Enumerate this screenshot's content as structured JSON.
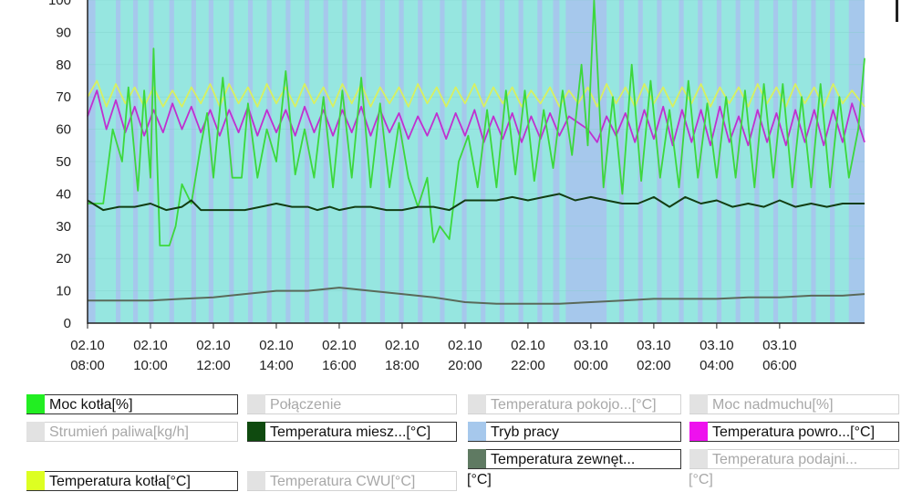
{
  "chart_data": {
    "type": "line",
    "ylim": [
      0,
      100
    ],
    "yticks": [
      0,
      10,
      20,
      30,
      40,
      50,
      60,
      70,
      80,
      90,
      100
    ],
    "xlim_hours": [
      0,
      24.7
    ],
    "x_ticks": [
      {
        "date": "02.10",
        "time": "08:00",
        "h": 0
      },
      {
        "date": "02.10",
        "time": "10:00",
        "h": 2
      },
      {
        "date": "02.10",
        "time": "12:00",
        "h": 4
      },
      {
        "date": "02.10",
        "time": "14:00",
        "h": 6
      },
      {
        "date": "02.10",
        "time": "16:00",
        "h": 8
      },
      {
        "date": "02.10",
        "time": "18:00",
        "h": 10
      },
      {
        "date": "02.10",
        "time": "20:00",
        "h": 12
      },
      {
        "date": "02.10",
        "time": "22:00",
        "h": 14
      },
      {
        "date": "03.10",
        "time": "00:00",
        "h": 16
      },
      {
        "date": "03.10",
        "time": "02:00",
        "h": 18
      },
      {
        "date": "03.10",
        "time": "04:00",
        "h": 20
      },
      {
        "date": "03.10",
        "time": "06:00",
        "h": 22
      }
    ],
    "background": {
      "name": "Tryb pracy",
      "base_color": "#96e6e0",
      "stripe_color": "#a6c8ec",
      "stripe_hours": [
        [
          0.0,
          0.25
        ],
        [
          0.9,
          1.05
        ],
        [
          1.45,
          1.6
        ],
        [
          1.95,
          2.1
        ],
        [
          2.6,
          2.75
        ],
        [
          3.3,
          3.45
        ],
        [
          3.85,
          4.0
        ],
        [
          4.5,
          4.65
        ],
        [
          5.1,
          5.25
        ],
        [
          5.7,
          5.85
        ],
        [
          6.3,
          6.45
        ],
        [
          6.9,
          7.05
        ],
        [
          7.5,
          7.65
        ],
        [
          8.1,
          8.25
        ],
        [
          8.7,
          8.85
        ],
        [
          9.3,
          9.45
        ],
        [
          9.9,
          10.05
        ],
        [
          10.5,
          10.65
        ],
        [
          11.2,
          11.35
        ],
        [
          11.9,
          12.05
        ],
        [
          12.5,
          12.65
        ],
        [
          13.1,
          13.25
        ],
        [
          13.7,
          13.85
        ],
        [
          14.3,
          14.45
        ],
        [
          14.8,
          15.0
        ],
        [
          15.2,
          16.5
        ],
        [
          16.9,
          17.05
        ],
        [
          17.5,
          17.65
        ],
        [
          18.1,
          18.25
        ],
        [
          18.8,
          18.95
        ],
        [
          19.4,
          19.55
        ],
        [
          20.0,
          20.15
        ],
        [
          20.6,
          20.75
        ],
        [
          21.2,
          21.35
        ],
        [
          21.8,
          21.95
        ],
        [
          22.4,
          22.55
        ],
        [
          23.0,
          23.15
        ],
        [
          23.6,
          23.75
        ],
        [
          24.2,
          24.7
        ]
      ]
    },
    "series": [
      {
        "name": "Temperatura kotła[°C]",
        "color": "#d8f060",
        "x": [
          0,
          0.3,
          0.6,
          0.9,
          1.2,
          1.5,
          1.8,
          2.1,
          2.4,
          2.7,
          3.0,
          3.3,
          3.6,
          3.9,
          4.2,
          4.5,
          4.8,
          5.1,
          5.4,
          5.7,
          6.0,
          6.3,
          6.6,
          6.9,
          7.2,
          7.5,
          7.8,
          8.1,
          8.4,
          8.7,
          9.0,
          9.3,
          9.6,
          9.9,
          10.2,
          10.5,
          10.8,
          11.1,
          11.4,
          11.7,
          12.0,
          12.3,
          12.6,
          12.9,
          13.2,
          13.5,
          13.8,
          14.1,
          14.4,
          14.7,
          15.0,
          15.3,
          15.6,
          15.9,
          16.2,
          16.5,
          16.8,
          17.1,
          17.4,
          17.7,
          18.0,
          18.3,
          18.6,
          18.9,
          19.2,
          19.5,
          19.8,
          20.1,
          20.4,
          20.7,
          21.0,
          21.3,
          21.6,
          21.9,
          22.2,
          22.5,
          22.8,
          23.1,
          23.4,
          23.7,
          24.0,
          24.3,
          24.7
        ],
        "y": [
          70,
          75,
          67,
          74,
          68,
          73,
          67,
          73,
          67,
          72,
          67,
          73,
          68,
          74,
          67,
          74,
          68,
          73,
          67,
          74,
          68,
          73,
          67,
          74,
          68,
          73,
          67,
          74,
          68,
          74,
          67,
          73,
          68,
          73,
          67,
          74,
          68,
          73,
          67,
          73,
          68,
          74,
          67,
          73,
          68,
          73,
          67,
          72,
          68,
          73,
          67,
          72,
          68,
          73,
          67,
          74,
          68,
          73,
          67,
          74,
          68,
          73,
          67,
          73,
          68,
          74,
          67,
          73,
          68,
          73,
          67,
          74,
          68,
          73,
          67,
          74,
          68,
          73,
          67,
          74,
          68,
          72,
          67
        ]
      },
      {
        "name": "Temperatura powro...[°C]",
        "color": "#c030d0",
        "x": [
          0,
          0.3,
          0.6,
          0.9,
          1.2,
          1.5,
          1.8,
          2.1,
          2.4,
          2.7,
          3.0,
          3.3,
          3.6,
          3.9,
          4.2,
          4.5,
          4.8,
          5.1,
          5.4,
          5.7,
          6.0,
          6.3,
          6.6,
          6.9,
          7.2,
          7.5,
          7.8,
          8.1,
          8.4,
          8.7,
          9.0,
          9.3,
          9.6,
          9.9,
          10.2,
          10.5,
          10.8,
          11.1,
          11.4,
          11.7,
          12.0,
          12.3,
          12.6,
          12.9,
          13.2,
          13.5,
          13.8,
          14.1,
          14.4,
          14.7,
          15.0,
          15.3,
          15.6,
          15.9,
          16.2,
          16.5,
          16.8,
          17.1,
          17.4,
          17.7,
          18.0,
          18.3,
          18.6,
          18.9,
          19.2,
          19.5,
          19.8,
          20.1,
          20.4,
          20.7,
          21.0,
          21.3,
          21.6,
          21.9,
          22.2,
          22.5,
          22.8,
          23.1,
          23.4,
          23.7,
          24.0,
          24.3,
          24.7
        ],
        "y": [
          64,
          72,
          60,
          69,
          59,
          67,
          58,
          66,
          59,
          68,
          60,
          67,
          59,
          66,
          58,
          66,
          59,
          67,
          58,
          66,
          59,
          66,
          58,
          67,
          59,
          66,
          58,
          66,
          59,
          67,
          58,
          66,
          59,
          65,
          57,
          64,
          58,
          65,
          57,
          65,
          58,
          66,
          56,
          64,
          57,
          65,
          56,
          64,
          57,
          65,
          58,
          64,
          62,
          60,
          56,
          64,
          58,
          65,
          56,
          66,
          57,
          67,
          55,
          66,
          56,
          66,
          55,
          67,
          56,
          64,
          55,
          66,
          56,
          65,
          55,
          66,
          56,
          66,
          55,
          66,
          56,
          68,
          56
        ]
      },
      {
        "name": "Moc kotła[%]",
        "color": "#3cd83c",
        "x": [
          0,
          0.15,
          0.5,
          0.8,
          1.1,
          1.3,
          1.6,
          1.8,
          2.0,
          2.1,
          2.3,
          2.6,
          2.8,
          3.0,
          3.3,
          3.6,
          3.8,
          4.0,
          4.3,
          4.6,
          4.9,
          5.1,
          5.4,
          5.7,
          6.0,
          6.3,
          6.6,
          6.9,
          7.2,
          7.5,
          7.8,
          8.1,
          8.4,
          8.7,
          9.0,
          9.3,
          9.6,
          9.9,
          10.2,
          10.5,
          10.8,
          11.0,
          11.2,
          11.5,
          11.8,
          12.1,
          12.4,
          12.7,
          13.0,
          13.3,
          13.6,
          13.9,
          14.2,
          14.5,
          14.8,
          15.1,
          15.4,
          15.7,
          15.9,
          16.1,
          16.4,
          16.7,
          17.0,
          17.3,
          17.6,
          17.9,
          18.2,
          18.5,
          18.8,
          19.1,
          19.4,
          19.7,
          20.0,
          20.3,
          20.6,
          20.9,
          21.2,
          21.5,
          21.8,
          22.1,
          22.4,
          22.7,
          23.0,
          23.3,
          23.6,
          23.9,
          24.2,
          24.5,
          24.7
        ],
        "y": [
          37,
          37,
          37,
          60,
          50,
          73,
          41,
          72,
          45,
          85,
          24,
          24,
          30,
          43,
          37,
          55,
          65,
          45,
          76,
          45,
          45,
          68,
          45,
          60,
          50,
          78,
          46,
          60,
          45,
          70,
          42,
          72,
          45,
          76,
          42,
          68,
          42,
          62,
          45,
          36,
          45,
          25,
          30,
          26,
          50,
          58,
          42,
          66,
          42,
          72,
          46,
          72,
          44,
          66,
          48,
          72,
          52,
          80,
          55,
          100,
          42,
          70,
          40,
          80,
          44,
          75,
          45,
          66,
          42,
          75,
          45,
          68,
          45,
          70,
          45,
          72,
          42,
          74,
          45,
          74,
          42,
          70,
          42,
          74,
          42,
          70,
          45,
          60,
          82
        ]
      },
      {
        "name": "Temperatura miesz...[°C]",
        "color": "#123d12",
        "x": [
          0,
          0.5,
          1.0,
          1.5,
          2.0,
          2.5,
          3.0,
          3.3,
          3.6,
          4.0,
          4.5,
          5.0,
          5.5,
          6.0,
          6.5,
          7.0,
          7.3,
          7.7,
          8.0,
          8.5,
          9.0,
          9.5,
          10.0,
          10.5,
          11.0,
          11.5,
          12.0,
          12.5,
          13.0,
          13.5,
          14.0,
          14.5,
          15.0,
          15.5,
          16.0,
          16.5,
          17.0,
          17.5,
          18.0,
          18.5,
          19.0,
          19.5,
          20.0,
          20.5,
          21.0,
          21.5,
          22.0,
          22.5,
          23.0,
          23.5,
          24.0,
          24.7
        ],
        "y": [
          38,
          35,
          36,
          36,
          37,
          35,
          36,
          38,
          35,
          35,
          35,
          35,
          36,
          37,
          36,
          36,
          35,
          36,
          35,
          36,
          36,
          35,
          35,
          36,
          36,
          35,
          38,
          38,
          38,
          39,
          38,
          39,
          40,
          38,
          39,
          38,
          37,
          37,
          39,
          36,
          39,
          37,
          38,
          36,
          37,
          36,
          38,
          36,
          37,
          36,
          37,
          37
        ]
      },
      {
        "name": "Temperatura zewnęt...[°C]",
        "color": "#5a6a5a",
        "x": [
          0,
          1,
          2,
          3,
          4,
          5,
          6,
          7,
          8,
          9,
          10,
          11,
          12,
          13,
          14,
          15,
          16,
          17,
          18,
          19,
          20,
          21,
          22,
          23,
          24,
          24.7
        ],
        "y": [
          7,
          7,
          7,
          7.5,
          8,
          9,
          10,
          10,
          11,
          10,
          9,
          8,
          6.5,
          6,
          6,
          6,
          6.5,
          7,
          7.5,
          7.5,
          7.5,
          8,
          8,
          8.5,
          8.5,
          9
        ]
      }
    ],
    "legend": [
      [
        {
          "label": "Moc kotła[%]",
          "color": "#22ee22",
          "active": true
        },
        {
          "label": "Połączenie",
          "color": "#e2e2e2",
          "active": false
        },
        {
          "label": "Temperatura pokojo...[°C]",
          "color": "#e2e2e2",
          "active": false
        },
        {
          "label": "Moc nadmuchu[%]",
          "color": "#e2e2e2",
          "active": false
        }
      ],
      [
        {
          "label": "Strumień paliwa[kg/h]",
          "color": "#e2e2e2",
          "active": false
        },
        {
          "label": "Temperatura miesz...[°C]",
          "color": "#0f4a0f",
          "active": true
        },
        {
          "label": "Tryb pracy",
          "color": "#a6c8ec",
          "active": true
        },
        {
          "label": "Temperatura powro...[°C]",
          "color": "#ee11ee",
          "active": true
        }
      ],
      [
        {
          "label": "Temperatura zewnęt...",
          "suffix": "[°C]",
          "color": "#5f7a62",
          "active": true
        },
        {
          "label": "Temperatura podajni...",
          "suffix": "[°C]",
          "color": "#e2e2e2",
          "active": false
        }
      ],
      [
        {
          "label": "Temperatura kotła[°C]",
          "color": "#ddff22",
          "active": true
        },
        {
          "label": "Temperatura CWU[°C]",
          "color": "#e2e2e2",
          "active": false
        }
      ]
    ]
  }
}
